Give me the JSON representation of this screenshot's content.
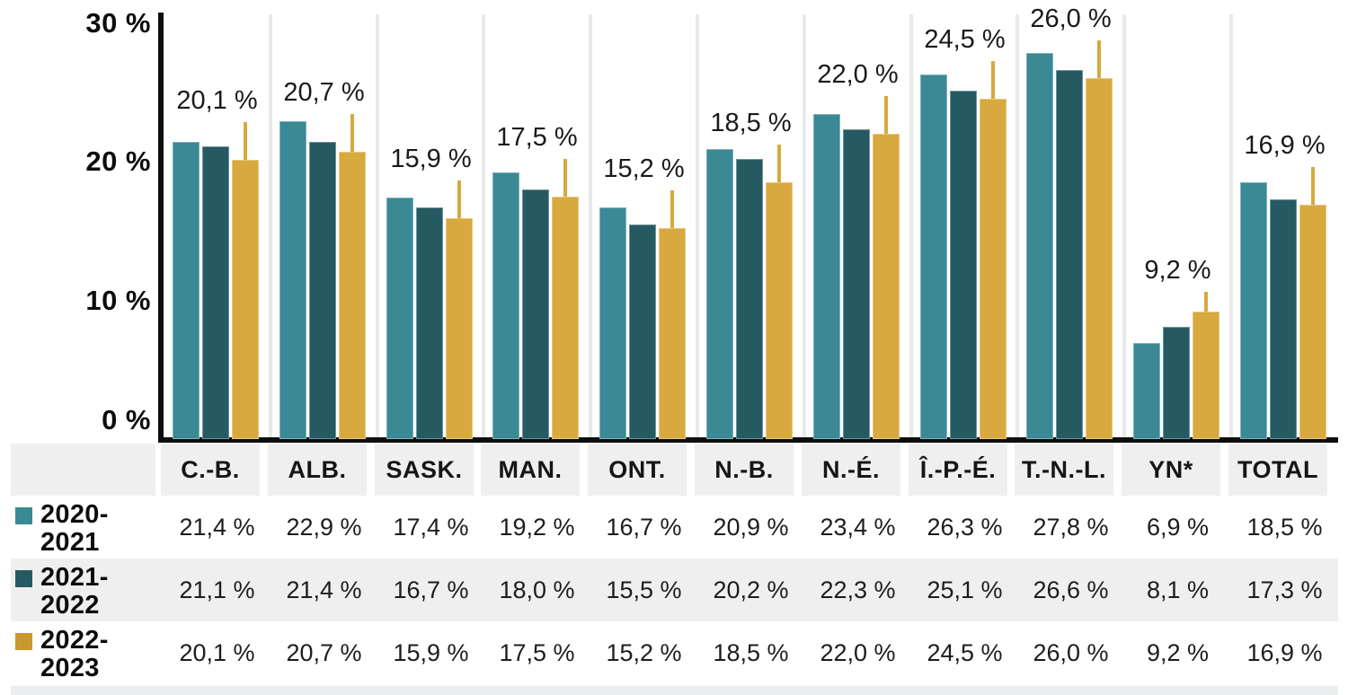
{
  "chart_data": {
    "type": "bar",
    "title": "",
    "categories": [
      "C.-B.",
      "ALB.",
      "SASK.",
      "MAN.",
      "ONT.",
      "N.-B.",
      "N.-É.",
      "Î.-P.-É.",
      "T.-N.-L.",
      "YN*",
      "TOTAL"
    ],
    "series": [
      {
        "name": "2020-2021",
        "label_lines": [
          "2020-",
          "2021"
        ],
        "color": "#3a8995",
        "values": [
          21.4,
          22.9,
          17.4,
          19.2,
          16.7,
          20.9,
          23.4,
          26.3,
          27.8,
          6.9,
          18.5
        ]
      },
      {
        "name": "2021-2022",
        "label_lines": [
          "2021-",
          "2022"
        ],
        "color": "#265a63",
        "values": [
          21.1,
          21.4,
          16.7,
          18.0,
          15.5,
          20.2,
          22.3,
          25.1,
          26.6,
          8.1,
          17.3
        ]
      },
      {
        "name": "2022-2023",
        "label_lines": [
          "2022-",
          "2023"
        ],
        "color": "#d8a93e",
        "values": [
          20.1,
          20.7,
          15.9,
          17.5,
          15.2,
          18.5,
          22.0,
          24.5,
          26.0,
          9.2,
          16.9
        ]
      }
    ],
    "bar_labels": [
      "20,1 %",
      "20,7 %",
      "15,9 %",
      "17,5 %",
      "15,2 %",
      "18,5 %",
      "22,0 %",
      "24,5 %",
      "26,0 %",
      "9,2 %",
      "16,9 %"
    ],
    "bar_labels_for_series": "2022-2023",
    "ylim": [
      0,
      30
    ],
    "y_ticks": [
      {
        "label": "0 %",
        "value": 0
      },
      {
        "label": "10 %",
        "value": 10
      },
      {
        "label": "20 %",
        "value": 20
      },
      {
        "label": "30 %",
        "value": 30
      }
    ],
    "grid": "vertical-group-separators",
    "legend_position": "table-row-labels-left"
  },
  "table": {
    "header": [
      "C.-B.",
      "ALB.",
      "SASK.",
      "MAN.",
      "ONT.",
      "N.-B.",
      "N.-É.",
      "Î.-P.-É.",
      "T.-N.-L.",
      "YN*",
      "TOTAL"
    ],
    "rows": [
      {
        "series": "2020-2021",
        "label_lines": [
          "2020-",
          "2021"
        ],
        "swatch_color": "#3a8995",
        "values": [
          "21,4 %",
          "22,9 %",
          "17,4 %",
          "19,2 %",
          "16,7 %",
          "20,9 %",
          "23,4 %",
          "26,3 %",
          "27,8 %",
          "6,9 %",
          "18,5 %"
        ]
      },
      {
        "series": "2021-2022",
        "label_lines": [
          "2021-",
          "2022"
        ],
        "swatch_color": "#265a63",
        "values": [
          "21,1 %",
          "21,4 %",
          "16,7 %",
          "18,0 %",
          "15,5 %",
          "20,2 %",
          "22,3 %",
          "25,1 %",
          "26,6 %",
          "8,1 %",
          "17,3 %"
        ]
      },
      {
        "series": "2022-2023",
        "label_lines": [
          "2022-",
          "2023"
        ],
        "swatch_color": "#c9982f",
        "values": [
          "20,1 %",
          "20,7 %",
          "15,9 %",
          "17,5 %",
          "15,2 %",
          "18,5 %",
          "22,0 %",
          "24,5 %",
          "26,0 %",
          "9,2 %",
          "16,9 %"
        ]
      }
    ]
  },
  "colors": {
    "series_2020_2021": "#3a8995",
    "series_2021_2022": "#265a63",
    "series_2022_2023": "#d8a93e",
    "axis": "#0e0e0e",
    "group_separator": "#e9e9e9",
    "table_band": "#efefef",
    "bottom_strip": "#eaeeee",
    "text": "#111111"
  }
}
